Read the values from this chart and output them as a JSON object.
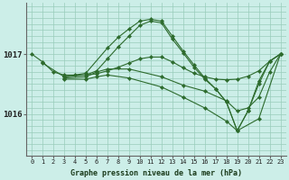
{
  "title": "Graphe pression niveau de la mer (hPa)",
  "bg_color": "#cceee8",
  "plot_bg": "#cceee8",
  "grid_color": "#99ccbb",
  "line_color": "#2d6b2d",
  "xlim": [
    -0.5,
    23.5
  ],
  "ylim": [
    1015.3,
    1017.85
  ],
  "yticks": [
    1016,
    1017
  ],
  "xticks": [
    0,
    1,
    2,
    3,
    4,
    5,
    6,
    7,
    8,
    9,
    10,
    11,
    12,
    13,
    14,
    15,
    16,
    17,
    18,
    19,
    20,
    21,
    22,
    23
  ],
  "lines": [
    {
      "x": [
        0,
        1,
        2,
        3,
        4,
        5,
        6,
        7,
        8,
        9,
        10,
        11,
        12,
        13,
        14,
        15,
        16,
        17,
        18,
        19,
        20,
        21,
        22,
        23
      ],
      "y": [
        1017.0,
        1016.87,
        1016.7,
        1016.65,
        1016.65,
        1016.65,
        1016.67,
        1016.72,
        1016.78,
        1016.85,
        1016.92,
        1016.95,
        1016.95,
        1016.87,
        1016.77,
        1016.68,
        1016.62,
        1016.58,
        1016.57,
        1016.58,
        1016.63,
        1016.72,
        1016.88,
        1017.0
      ]
    },
    {
      "x": [
        1,
        3,
        5,
        7,
        8,
        9,
        10,
        11,
        12,
        13,
        14,
        15,
        16,
        17,
        18,
        19,
        20,
        21,
        22,
        23
      ],
      "y": [
        1016.85,
        1016.62,
        1016.68,
        1017.1,
        1017.28,
        1017.42,
        1017.55,
        1017.58,
        1017.55,
        1017.3,
        1017.05,
        1016.82,
        1016.6,
        1016.42,
        1016.2,
        1015.72,
        1016.05,
        1016.55,
        1016.88,
        1017.0
      ]
    },
    {
      "x": [
        3,
        5,
        6,
        7,
        8,
        9,
        10,
        11,
        12,
        13,
        14,
        15,
        16,
        17,
        18,
        19,
        20,
        21,
        22,
        23
      ],
      "y": [
        1016.62,
        1016.65,
        1016.72,
        1016.92,
        1017.12,
        1017.3,
        1017.48,
        1017.55,
        1017.52,
        1017.25,
        1017.02,
        1016.78,
        1016.58,
        1016.42,
        1016.2,
        1015.72,
        1016.05,
        1016.5,
        1016.88,
        1017.0
      ]
    },
    {
      "x": [
        3,
        5,
        6,
        7,
        9,
        12,
        14,
        16,
        18,
        19,
        20,
        21,
        22,
        23
      ],
      "y": [
        1016.6,
        1016.62,
        1016.7,
        1016.75,
        1016.75,
        1016.62,
        1016.48,
        1016.38,
        1016.22,
        1016.05,
        1016.1,
        1016.28,
        1016.7,
        1017.0
      ]
    },
    {
      "x": [
        3,
        5,
        6,
        7,
        9,
        12,
        14,
        16,
        18,
        19,
        21,
        23
      ],
      "y": [
        1016.58,
        1016.58,
        1016.62,
        1016.65,
        1016.6,
        1016.45,
        1016.28,
        1016.1,
        1015.88,
        1015.72,
        1015.92,
        1017.0
      ]
    }
  ]
}
